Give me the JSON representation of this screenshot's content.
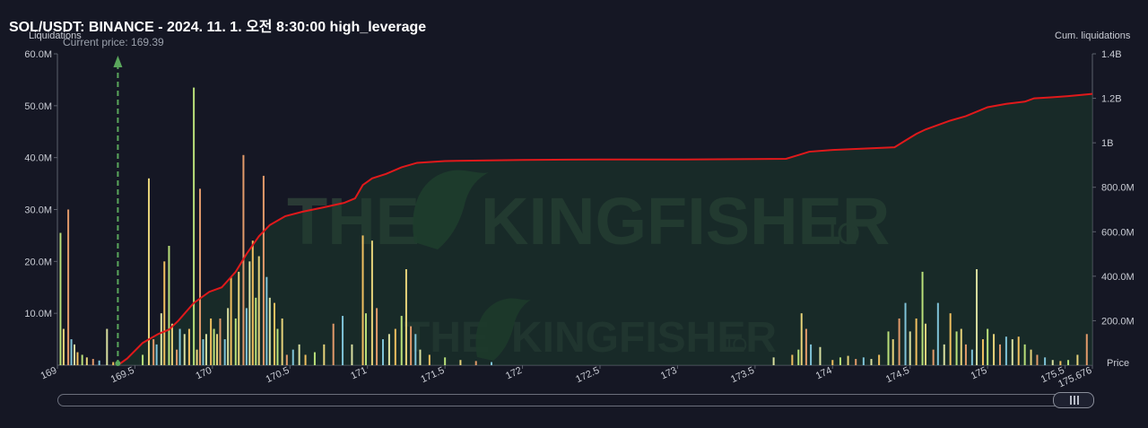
{
  "title": "SOL/USDT: BINANCE - 2024. 11. 1. 오전 8:30:00 high_leverage",
  "watermark": {
    "brand": "THE",
    "brand2": "KINGFISHER",
    "suffix": ".IO"
  },
  "colors": {
    "background": "#151724",
    "cum_line": "#e0191b",
    "current_price": "#5aa65c"
  },
  "chart_data": {
    "type": "bar",
    "left_axis_title": "Liquidations",
    "right_axis_title": "Cum. liquidations",
    "xlabel": "Price",
    "current_price_label": "Current price: 169.39",
    "current_price": 169.39,
    "xlim": [
      169.0,
      175.676
    ],
    "ylim_left": [
      0,
      60000000
    ],
    "ylim_right": [
      0,
      1400000000
    ],
    "left_ticks": [
      "10.0M",
      "20.0M",
      "30.0M",
      "40.0M",
      "50.0M",
      "60.0M"
    ],
    "left_tick_values": [
      10000000,
      20000000,
      30000000,
      40000000,
      50000000,
      60000000
    ],
    "right_ticks": [
      "200.0M",
      "400.0M",
      "600.0M",
      "800.0M",
      "1B",
      "1.2B",
      "1.4B"
    ],
    "right_tick_values": [
      200000000,
      400000000,
      600000000,
      800000000,
      1000000000,
      1200000000,
      1400000000
    ],
    "x_ticks": [
      "169",
      "169.5",
      "170",
      "170.5",
      "171",
      "171.5",
      "172",
      "172.5",
      "173",
      "173.5",
      "174",
      "174.5",
      "175",
      "175.5",
      "175.676"
    ],
    "x_tick_values": [
      169.0,
      169.5,
      170.0,
      170.5,
      171.0,
      171.5,
      172.0,
      172.5,
      173.0,
      173.5,
      174.0,
      174.5,
      175.0,
      175.5,
      175.676
    ],
    "series": [
      {
        "kind": "bars",
        "points": [
          [
            169.02,
            25500000
          ],
          [
            169.04,
            7000000
          ],
          [
            169.07,
            30000000
          ],
          [
            169.09,
            5000000
          ],
          [
            169.11,
            4000000
          ],
          [
            169.13,
            2500000
          ],
          [
            169.16,
            2000000
          ],
          [
            169.19,
            1500000
          ],
          [
            169.23,
            1200000
          ],
          [
            169.27,
            900000
          ],
          [
            169.32,
            7000000
          ],
          [
            169.36,
            600000
          ],
          [
            169.55,
            2000000
          ],
          [
            169.59,
            36000000
          ],
          [
            169.62,
            5000000
          ],
          [
            169.64,
            4000000
          ],
          [
            169.67,
            10000000
          ],
          [
            169.69,
            20000000
          ],
          [
            169.72,
            23000000
          ],
          [
            169.74,
            8000000
          ],
          [
            169.77,
            3000000
          ],
          [
            169.79,
            7000000
          ],
          [
            169.82,
            6000000
          ],
          [
            169.85,
            7000000
          ],
          [
            169.88,
            53500000
          ],
          [
            169.9,
            3000000
          ],
          [
            169.92,
            34000000
          ],
          [
            169.94,
            5000000
          ],
          [
            169.96,
            6000000
          ],
          [
            169.99,
            9000000
          ],
          [
            170.01,
            7000000
          ],
          [
            170.03,
            6000000
          ],
          [
            170.05,
            9000000
          ],
          [
            170.08,
            5000000
          ],
          [
            170.1,
            11000000
          ],
          [
            170.12,
            17000000
          ],
          [
            170.15,
            9000000
          ],
          [
            170.17,
            18000000
          ],
          [
            170.2,
            40500000
          ],
          [
            170.22,
            11000000
          ],
          [
            170.24,
            20000000
          ],
          [
            170.26,
            24000000
          ],
          [
            170.28,
            13000000
          ],
          [
            170.3,
            21000000
          ],
          [
            170.33,
            36500000
          ],
          [
            170.35,
            17000000
          ],
          [
            170.37,
            13000000
          ],
          [
            170.4,
            12000000
          ],
          [
            170.42,
            7000000
          ],
          [
            170.45,
            9000000
          ],
          [
            170.48,
            2000000
          ],
          [
            170.52,
            3000000
          ],
          [
            170.56,
            4000000
          ],
          [
            170.6,
            2000000
          ],
          [
            170.66,
            2500000
          ],
          [
            170.72,
            4000000
          ],
          [
            170.78,
            8000000
          ],
          [
            170.84,
            9500000
          ],
          [
            170.9,
            4000000
          ],
          [
            170.97,
            25000000
          ],
          [
            170.99,
            10000000
          ],
          [
            171.03,
            24000000
          ],
          [
            171.06,
            11000000
          ],
          [
            171.1,
            5000000
          ],
          [
            171.14,
            6000000
          ],
          [
            171.18,
            7000000
          ],
          [
            171.22,
            9500000
          ],
          [
            171.25,
            18500000
          ],
          [
            171.28,
            7500000
          ],
          [
            171.31,
            6000000
          ],
          [
            171.34,
            3000000
          ],
          [
            171.4,
            2000000
          ],
          [
            171.5,
            1500000
          ],
          [
            171.6,
            1000000
          ],
          [
            171.7,
            800000
          ],
          [
            171.8,
            600000
          ],
          [
            173.62,
            1500000
          ],
          [
            173.74,
            2000000
          ],
          [
            173.78,
            3000000
          ],
          [
            173.8,
            10000000
          ],
          [
            173.83,
            7000000
          ],
          [
            173.86,
            4000000
          ],
          [
            173.92,
            3500000
          ],
          [
            174.0,
            1000000
          ],
          [
            174.05,
            1500000
          ],
          [
            174.1,
            1800000
          ],
          [
            174.15,
            1200000
          ],
          [
            174.2,
            1500000
          ],
          [
            174.25,
            1200000
          ],
          [
            174.3,
            2000000
          ],
          [
            174.36,
            6500000
          ],
          [
            174.39,
            5000000
          ],
          [
            174.43,
            9000000
          ],
          [
            174.47,
            12000000
          ],
          [
            174.5,
            6500000
          ],
          [
            174.54,
            9000000
          ],
          [
            174.58,
            18000000
          ],
          [
            174.6,
            8000000
          ],
          [
            174.65,
            3000000
          ],
          [
            174.68,
            12000000
          ],
          [
            174.72,
            4000000
          ],
          [
            174.76,
            10000000
          ],
          [
            174.8,
            6500000
          ],
          [
            174.83,
            7000000
          ],
          [
            174.86,
            4000000
          ],
          [
            174.9,
            3000000
          ],
          [
            174.93,
            18500000
          ],
          [
            174.97,
            5000000
          ],
          [
            175.0,
            7000000
          ],
          [
            175.04,
            6000000
          ],
          [
            175.08,
            4000000
          ],
          [
            175.12,
            5500000
          ],
          [
            175.16,
            5000000
          ],
          [
            175.2,
            5500000
          ],
          [
            175.24,
            4000000
          ],
          [
            175.28,
            3000000
          ],
          [
            175.32,
            2000000
          ],
          [
            175.37,
            1500000
          ],
          [
            175.42,
            1000000
          ],
          [
            175.47,
            800000
          ],
          [
            175.52,
            1000000
          ],
          [
            175.58,
            2000000
          ],
          [
            175.64,
            6000000
          ]
        ]
      },
      {
        "kind": "cumulative",
        "points": [
          [
            169.39,
            0
          ],
          [
            169.45,
            30000000
          ],
          [
            169.55,
            100000000
          ],
          [
            169.65,
            140000000
          ],
          [
            169.72,
            160000000
          ],
          [
            169.78,
            200000000
          ],
          [
            169.88,
            280000000
          ],
          [
            169.98,
            330000000
          ],
          [
            170.06,
            350000000
          ],
          [
            170.15,
            420000000
          ],
          [
            170.22,
            500000000
          ],
          [
            170.3,
            580000000
          ],
          [
            170.37,
            630000000
          ],
          [
            170.47,
            670000000
          ],
          [
            170.58,
            690000000
          ],
          [
            170.72,
            710000000
          ],
          [
            170.85,
            730000000
          ],
          [
            170.92,
            750000000
          ],
          [
            170.97,
            810000000
          ],
          [
            171.03,
            840000000
          ],
          [
            171.12,
            860000000
          ],
          [
            171.22,
            890000000
          ],
          [
            171.32,
            910000000
          ],
          [
            171.5,
            918000000
          ],
          [
            172.0,
            923000000
          ],
          [
            172.5,
            925000000
          ],
          [
            173.0,
            925000000
          ],
          [
            173.5,
            927000000
          ],
          [
            173.7,
            928000000
          ],
          [
            173.78,
            945000000
          ],
          [
            173.85,
            960000000
          ],
          [
            174.0,
            968000000
          ],
          [
            174.4,
            980000000
          ],
          [
            174.47,
            1010000000
          ],
          [
            174.54,
            1040000000
          ],
          [
            174.6,
            1060000000
          ],
          [
            174.68,
            1080000000
          ],
          [
            174.76,
            1100000000
          ],
          [
            174.86,
            1120000000
          ],
          [
            174.93,
            1140000000
          ],
          [
            175.0,
            1160000000
          ],
          [
            175.12,
            1175000000
          ],
          [
            175.24,
            1185000000
          ],
          [
            175.3,
            1200000000
          ],
          [
            175.42,
            1205000000
          ],
          [
            175.52,
            1210000000
          ],
          [
            175.676,
            1220000000
          ]
        ]
      }
    ]
  }
}
